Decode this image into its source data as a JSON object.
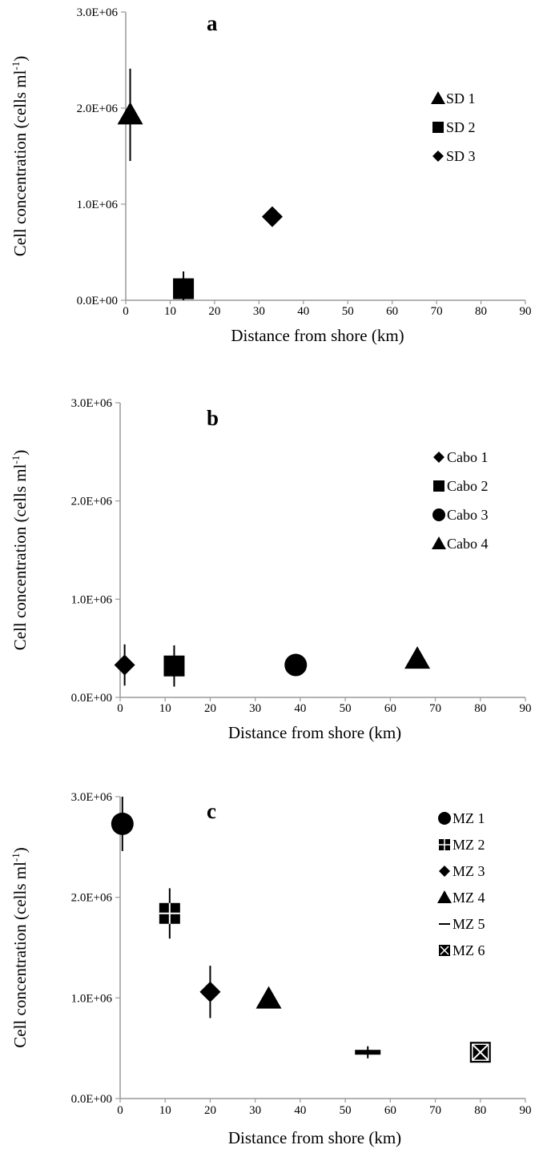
{
  "chart_data": [
    {
      "type": "scatter",
      "panel_label": "a",
      "xlabel": "Distance from shore (km)",
      "ylabel": "Cell concentration (cells ml",
      "ylabel_sup": "-1",
      "ylabel_close": ")",
      "xlim": [
        0,
        90
      ],
      "ylim": [
        0,
        3000000
      ],
      "x_ticks": [
        "0",
        "10",
        "20",
        "30",
        "40",
        "50",
        "60",
        "70",
        "80",
        "90"
      ],
      "y_ticks": [
        "0.0E+00",
        "1.0E+06",
        "2.0E+06",
        "3.0E+06"
      ],
      "series": [
        {
          "name": "SD 1",
          "marker": "triangle",
          "x": 1,
          "y": 1930000,
          "err": 480000
        },
        {
          "name": "SD 2",
          "marker": "square",
          "x": 13,
          "y": 120000,
          "err": 180000
        },
        {
          "name": "SD 3",
          "marker": "diamond",
          "x": 33,
          "y": 870000,
          "err": 0
        }
      ]
    },
    {
      "type": "scatter",
      "panel_label": "b",
      "xlabel": "Distance from shore (km)",
      "ylabel": "Cell concentration (cells ml",
      "ylabel_sup": "-1",
      "ylabel_close": ")",
      "xlim": [
        0,
        90
      ],
      "ylim": [
        0,
        3000000
      ],
      "x_ticks": [
        "0",
        "10",
        "20",
        "30",
        "40",
        "50",
        "60",
        "70",
        "80",
        "90"
      ],
      "y_ticks": [
        "0.0E+00",
        "1.0E+06",
        "2.0E+06",
        "3.0E+06"
      ],
      "series": [
        {
          "name": "Cabo 1",
          "marker": "diamond",
          "x": 1,
          "y": 330000,
          "err": 210000
        },
        {
          "name": "Cabo 2",
          "marker": "square",
          "x": 12,
          "y": 320000,
          "err": 210000
        },
        {
          "name": "Cabo 3",
          "marker": "circle",
          "x": 39,
          "y": 330000,
          "err": 0
        },
        {
          "name": "Cabo 4",
          "marker": "triangle",
          "x": 66,
          "y": 390000,
          "err": 0
        }
      ]
    },
    {
      "type": "scatter",
      "panel_label": "c",
      "xlabel": "Distance from shore (km)",
      "ylabel": "Cell concentration (cells ml",
      "ylabel_sup": "-1",
      "ylabel_close": ")",
      "xlim": [
        0,
        90
      ],
      "ylim": [
        0,
        3000000
      ],
      "x_ticks": [
        "0",
        "10",
        "20",
        "30",
        "40",
        "50",
        "60",
        "70",
        "80",
        "90"
      ],
      "y_ticks": [
        "0.0E+00",
        "1.0E+06",
        "2.0E+06",
        "3.0E+06"
      ],
      "series": [
        {
          "name": "MZ 1",
          "marker": "circle",
          "x": 0.5,
          "y": 2730000,
          "err": 270000
        },
        {
          "name": "MZ 2",
          "marker": "gridsquare",
          "x": 11,
          "y": 1840000,
          "err": 250000
        },
        {
          "name": "MZ 3",
          "marker": "diamond",
          "x": 20,
          "y": 1060000,
          "err": 260000
        },
        {
          "name": "MZ 4",
          "marker": "triangle",
          "x": 33,
          "y": 990000,
          "err": 0
        },
        {
          "name": "MZ 5",
          "marker": "dash",
          "x": 55,
          "y": 460000,
          "err": 60000
        },
        {
          "name": "MZ 6",
          "marker": "xsquare",
          "x": 80,
          "y": 460000,
          "err": 0
        }
      ]
    }
  ]
}
